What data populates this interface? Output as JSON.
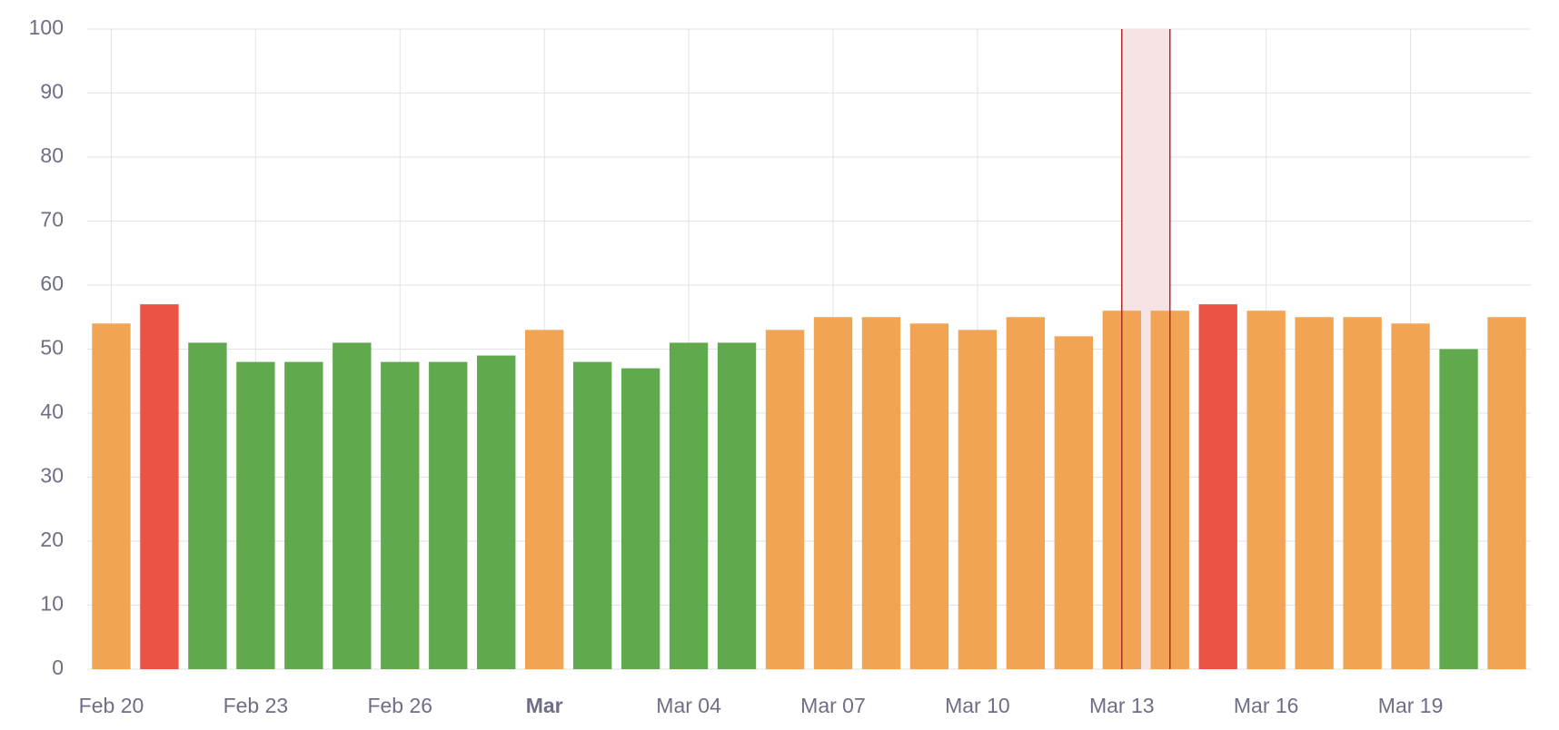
{
  "chart_data": {
    "type": "bar",
    "categories": [
      "Feb 20",
      null,
      null,
      "Feb 23",
      null,
      null,
      "Feb 26",
      null,
      null,
      "Mar",
      null,
      null,
      "Mar 04",
      null,
      null,
      "Mar 07",
      null,
      null,
      "Mar 10",
      null,
      null,
      "Mar 13",
      null,
      null,
      "Mar 16",
      null,
      null,
      "Mar 19",
      null,
      null
    ],
    "values": [
      54,
      57,
      51,
      48,
      48,
      51,
      48,
      48,
      49,
      53,
      48,
      47,
      51,
      51,
      53,
      55,
      55,
      54,
      53,
      55,
      52,
      56,
      56,
      57,
      56,
      55,
      55,
      54,
      50,
      55
    ],
    "colors": [
      "#f0a04b",
      "#ea4a3b",
      "#58a443",
      "#58a443",
      "#58a443",
      "#58a443",
      "#58a443",
      "#58a443",
      "#58a443",
      "#f0a04b",
      "#58a443",
      "#58a443",
      "#58a443",
      "#58a443",
      "#f0a04b",
      "#f0a04b",
      "#f0a04b",
      "#f0a04b",
      "#f0a04b",
      "#f0a04b",
      "#f0a04b",
      "#f0a04b",
      "#f0a04b",
      "#ea4a3b",
      "#f0a04b",
      "#f0a04b",
      "#f0a04b",
      "#f0a04b",
      "#58a443",
      "#f0a04b"
    ],
    "ylim": [
      0,
      100
    ],
    "yticks": [
      0,
      10,
      20,
      30,
      40,
      50,
      60,
      70,
      80,
      90,
      100
    ],
    "grid": true
  }
}
